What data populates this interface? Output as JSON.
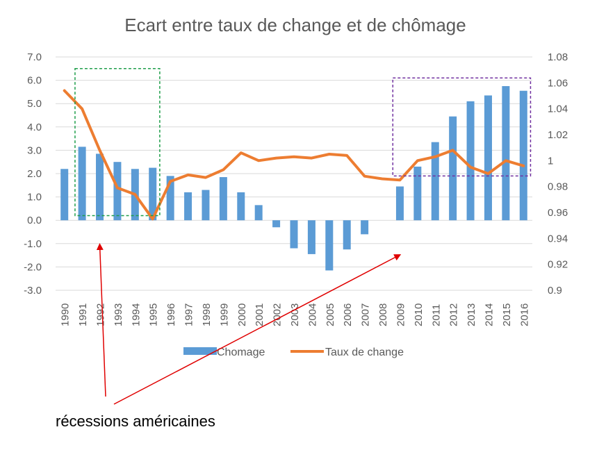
{
  "chart_data": {
    "type": "bar",
    "title": "Ecart entre taux de change et de chômage",
    "categories": [
      "1990",
      "1991",
      "1992",
      "1993",
      "1994",
      "1995",
      "1996",
      "1997",
      "1998",
      "1999",
      "2000",
      "2001",
      "2002",
      "2003",
      "2004",
      "2005",
      "2006",
      "2007",
      "2008",
      "2009",
      "2010",
      "2011",
      "2012",
      "2013",
      "2014",
      "2015",
      "2016"
    ],
    "series": [
      {
        "name": "Chomage",
        "type": "bar",
        "axis": "left",
        "color": "#5B9BD5",
        "values": [
          2.2,
          3.15,
          2.85,
          2.5,
          2.2,
          2.25,
          1.9,
          1.2,
          1.3,
          1.85,
          1.2,
          0.65,
          -0.3,
          -1.2,
          -1.45,
          -2.15,
          -1.25,
          -0.6,
          0.0,
          1.45,
          2.3,
          3.35,
          4.45,
          5.1,
          5.35,
          5.75,
          5.55
        ]
      },
      {
        "name": "Taux de change",
        "type": "line",
        "axis": "right",
        "color": "#ED7D31",
        "values": [
          1.054,
          1.04,
          1.008,
          0.979,
          0.974,
          0.955,
          0.984,
          0.989,
          0.987,
          0.993,
          1.006,
          1.0,
          1.002,
          1.003,
          1.002,
          1.005,
          1.004,
          0.988,
          0.986,
          0.985,
          1.0,
          1.003,
          1.008,
          0.995,
          0.99,
          1.0,
          0.996
        ]
      }
    ],
    "y_left": {
      "min": -3.0,
      "max": 7.0,
      "step": 1.0,
      "ticks": [
        "7.0",
        "6.0",
        "5.0",
        "4.0",
        "3.0",
        "2.0",
        "1.0",
        "0.0",
        "-1.0",
        "-2.0",
        "-3.0"
      ]
    },
    "y_right": {
      "min": 0.9,
      "max": 1.08,
      "step": 0.02,
      "ticks": [
        "1.08",
        "1.06",
        "1.04",
        "1.02",
        "1",
        "0.98",
        "0.96",
        "0.94",
        "0.92",
        "0.9"
      ]
    },
    "grid": true,
    "legend_position": "bottom",
    "annotations": {
      "caption": "récessions américaines",
      "recession_boxes": [
        {
          "from": "1991",
          "to": "1995",
          "color": "#1E9E4A",
          "y_top": 6.5,
          "y_bottom": 0.2
        },
        {
          "from": "2009",
          "to": "2016",
          "color": "#7030A0",
          "y_top": 6.1,
          "y_bottom": 1.9
        }
      ],
      "arrow_color": "#E00000",
      "arrow_targets": [
        "1992",
        "2009"
      ]
    }
  }
}
